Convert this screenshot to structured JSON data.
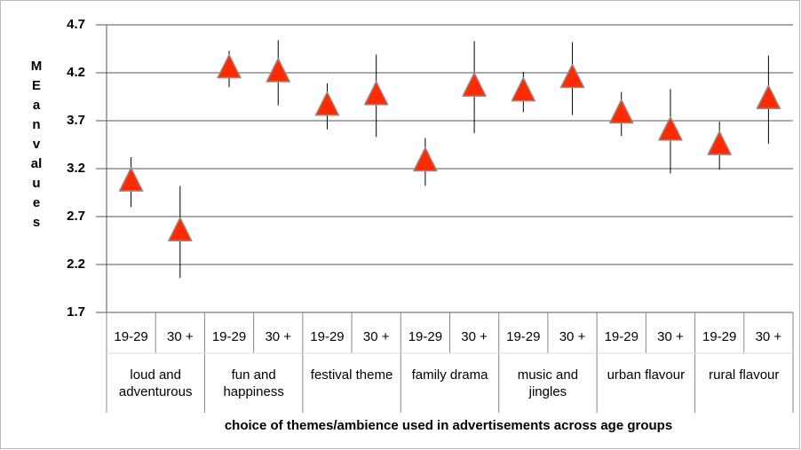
{
  "chart_data": {
    "type": "scatter",
    "x_label": "choice of themes/ambience used in advertisements across age groups",
    "y_label": "MEan values",
    "categories": [
      "19-29",
      "30 +",
      "19-29",
      "30 +",
      "19-29",
      "30 +",
      "19-29",
      "30 +",
      "19-29",
      "30 +",
      "19-29",
      "30 +",
      "19-29",
      "30 +"
    ],
    "groups": [
      "loud and adventurous",
      "fun and happiness",
      "festival theme",
      "family drama",
      "music and jingles",
      "urban flavour",
      "rural flavour"
    ],
    "series": [
      {
        "color": "#ff2a00",
        "values": [
          3.06,
          2.54,
          4.24,
          4.2,
          3.85,
          3.96,
          3.27,
          4.05,
          4.0,
          4.14,
          3.77,
          3.59,
          3.44,
          3.92
        ],
        "errors": [
          0.26,
          0.48,
          0.19,
          0.34,
          0.24,
          0.43,
          0.25,
          0.48,
          0.21,
          0.38,
          0.23,
          0.44,
          0.25,
          0.46
        ]
      }
    ],
    "ylim": [
      1.7,
      4.7
    ],
    "yticks": [
      1.7,
      2.2,
      2.7,
      3.2,
      3.7,
      4.2,
      4.7
    ],
    "grid": true
  }
}
